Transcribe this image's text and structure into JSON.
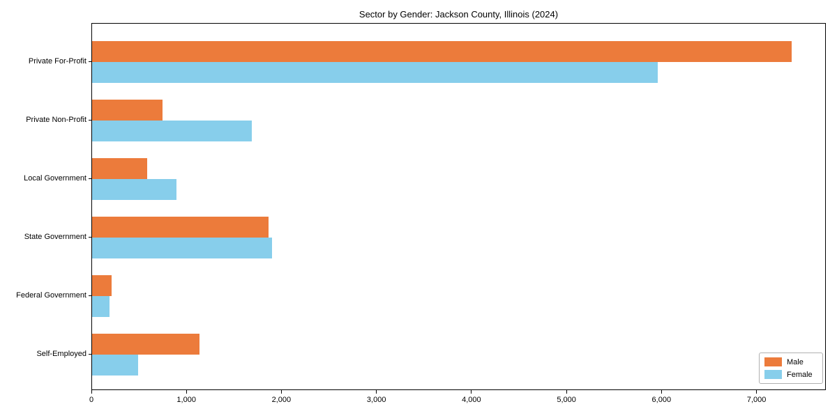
{
  "chart_data": {
    "type": "bar",
    "orientation": "horizontal",
    "title": "Sector by Gender: Jackson County, Illinois (2024)",
    "categories": [
      "Private For-Profit",
      "Private Non-Profit",
      "Local Government",
      "State Government",
      "Federal Government",
      "Self-Employed"
    ],
    "series": [
      {
        "name": "Male",
        "color": "#EC7B3B",
        "values": [
          7360,
          740,
          580,
          1860,
          205,
          1130
        ]
      },
      {
        "name": "Female",
        "color": "#87CEEB",
        "values": [
          5950,
          1680,
          890,
          1890,
          180,
          485
        ]
      }
    ],
    "xlabel": "",
    "ylabel": "",
    "xlim": [
      0,
      7730
    ],
    "xticks": [
      0,
      1000,
      2000,
      3000,
      4000,
      5000,
      6000,
      7000
    ],
    "xtick_labels": [
      "0",
      "1,000",
      "2,000",
      "3,000",
      "4,000",
      "5,000",
      "6,000",
      "7,000"
    ],
    "grid": false,
    "legend_position": "lower-right",
    "plot_background": "#ffffff",
    "spine_color": "#000000",
    "text_color": "#000000"
  }
}
